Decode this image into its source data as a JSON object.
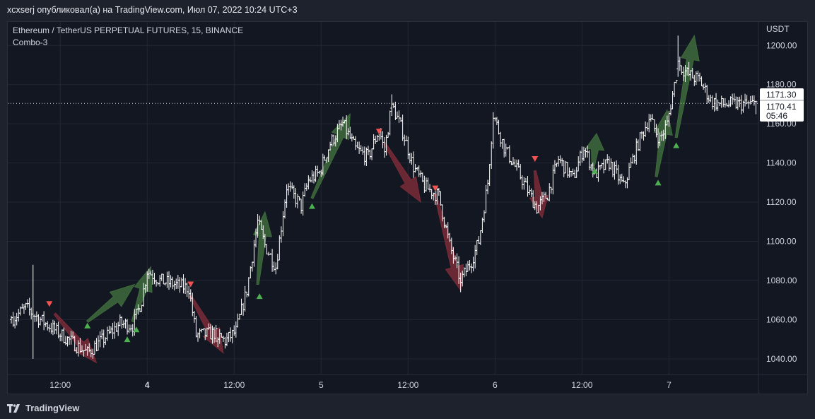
{
  "header": {
    "publish_line": "xcxserj опубликовал(а) на TradingView.com, Июл 07, 2022 10:24 UTC+3"
  },
  "legend": {
    "symbol_line": "Ethereum / TetherUS PERPETUAL FUTURES, 15, BINANCE",
    "indicator": "Combo-3"
  },
  "footer": {
    "brand": "TradingView"
  },
  "colors": {
    "background": "#131722",
    "outer": "#1e222d",
    "grid": "#232733",
    "candle": "#ffffff",
    "buy": "#4caf50",
    "sell": "#f05350",
    "buy_arrow": "#3e6b3c",
    "sell_arrow": "#7a2a37",
    "label_bg": "#ffffff",
    "label_text": "#131722"
  },
  "chart_data": {
    "type": "ohlc",
    "y_axis_unit": "USDT",
    "ylim": [
      1032,
      1212
    ],
    "y_ticks": [
      1040,
      1060,
      1080,
      1100,
      1120,
      1140,
      1160,
      1180,
      1200
    ],
    "y_tick_labels": [
      "1040.00",
      "1060.00",
      "1080.00",
      "1100.00",
      "1120.00",
      "1140.00",
      "1160.00",
      "1180.00",
      "1200.00"
    ],
    "bar_count": 412,
    "x_ticks": [
      {
        "bar": 27,
        "label": "12:00",
        "bold": false
      },
      {
        "bar": 75,
        "label": "4",
        "bold": true
      },
      {
        "bar": 123,
        "label": "12:00",
        "bold": false
      },
      {
        "bar": 171,
        "label": "5",
        "bold": false
      },
      {
        "bar": 219,
        "label": "12:00",
        "bold": false
      },
      {
        "bar": 267,
        "label": "6",
        "bold": false
      },
      {
        "bar": 315,
        "label": "12:00",
        "bold": false
      },
      {
        "bar": 363,
        "label": "7",
        "bold": false
      }
    ],
    "price_path": [
      [
        0,
        1060
      ],
      [
        8,
        1066
      ],
      [
        16,
        1060
      ],
      [
        28,
        1052
      ],
      [
        42,
        1043
      ],
      [
        52,
        1051
      ],
      [
        60,
        1058
      ],
      [
        67,
        1057
      ],
      [
        72,
        1070
      ],
      [
        75,
        1085
      ],
      [
        82,
        1080
      ],
      [
        94,
        1077
      ],
      [
        98,
        1076
      ],
      [
        102,
        1052
      ],
      [
        112,
        1053
      ],
      [
        118,
        1049
      ],
      [
        124,
        1054
      ],
      [
        130,
        1075
      ],
      [
        136,
        1110
      ],
      [
        140,
        1098
      ],
      [
        146,
        1087
      ],
      [
        152,
        1128
      ],
      [
        160,
        1118
      ],
      [
        164,
        1131
      ],
      [
        170,
        1135
      ],
      [
        176,
        1150
      ],
      [
        183,
        1160
      ],
      [
        190,
        1147
      ],
      [
        197,
        1143
      ],
      [
        203,
        1157
      ],
      [
        206,
        1146
      ],
      [
        210,
        1170
      ],
      [
        216,
        1156
      ],
      [
        222,
        1138
      ],
      [
        228,
        1128
      ],
      [
        236,
        1123
      ],
      [
        242,
        1098
      ],
      [
        248,
        1080
      ],
      [
        254,
        1090
      ],
      [
        258,
        1100
      ],
      [
        263,
        1130
      ],
      [
        266,
        1165
      ],
      [
        272,
        1148
      ],
      [
        280,
        1135
      ],
      [
        290,
        1117
      ],
      [
        296,
        1124
      ],
      [
        302,
        1142
      ],
      [
        310,
        1132
      ],
      [
        316,
        1148
      ],
      [
        322,
        1134
      ],
      [
        330,
        1140
      ],
      [
        338,
        1128
      ],
      [
        346,
        1150
      ],
      [
        352,
        1163
      ],
      [
        358,
        1152
      ],
      [
        362,
        1160
      ],
      [
        368,
        1190
      ],
      [
        374,
        1185
      ],
      [
        380,
        1182
      ],
      [
        386,
        1172
      ],
      [
        390,
        1170
      ]
    ],
    "ohlc_sample": [
      {
        "bar": 0,
        "open": 1060,
        "high": 1062,
        "low": 1058,
        "close": 1061
      },
      {
        "bar": 114,
        "open": 1049,
        "high": 1051,
        "low": 1046,
        "close": 1050
      },
      {
        "bar": 210,
        "open": 1168,
        "high": 1175,
        "low": 1164,
        "close": 1170
      },
      {
        "bar": 248,
        "open": 1081,
        "high": 1084,
        "low": 1074,
        "close": 1079
      },
      {
        "bar": 368,
        "open": 1188,
        "high": 1205,
        "low": 1184,
        "close": 1192
      }
    ],
    "last_close": 1171.3,
    "current_price": 1170.41,
    "price_label_primary": "1171.30",
    "price_label_secondary": "1170.41",
    "countdown": "05:46",
    "buy_signals": [
      {
        "bar": 42,
        "price": 1057
      },
      {
        "bar": 64,
        "price": 1050
      },
      {
        "bar": 69,
        "price": 1055
      },
      {
        "bar": 137,
        "price": 1072
      },
      {
        "bar": 166,
        "price": 1118
      },
      {
        "bar": 322,
        "price": 1136
      },
      {
        "bar": 357,
        "price": 1130
      },
      {
        "bar": 367,
        "price": 1149
      }
    ],
    "sell_signals": [
      {
        "bar": 21,
        "price": 1068
      },
      {
        "bar": 99,
        "price": 1078
      },
      {
        "bar": 203,
        "price": 1156
      },
      {
        "bar": 234,
        "price": 1127
      },
      {
        "bar": 289,
        "price": 1142
      }
    ],
    "buy_arrows": [
      [
        42,
        1059,
        68,
        1078
      ],
      [
        67,
        1059,
        77,
        1087
      ],
      [
        136,
        1078,
        140,
        1115
      ],
      [
        166,
        1122,
        187,
        1165
      ],
      [
        321,
        1137,
        323,
        1155
      ],
      [
        356,
        1133,
        362,
        1167
      ],
      [
        367,
        1153,
        377,
        1205
      ]
    ],
    "sell_arrows": [
      [
        24,
        1063,
        47,
        1038
      ],
      [
        99,
        1072,
        117,
        1043
      ],
      [
        206,
        1150,
        226,
        1120
      ],
      [
        234,
        1124,
        248,
        1075
      ],
      [
        289,
        1136,
        293,
        1112
      ]
    ]
  }
}
